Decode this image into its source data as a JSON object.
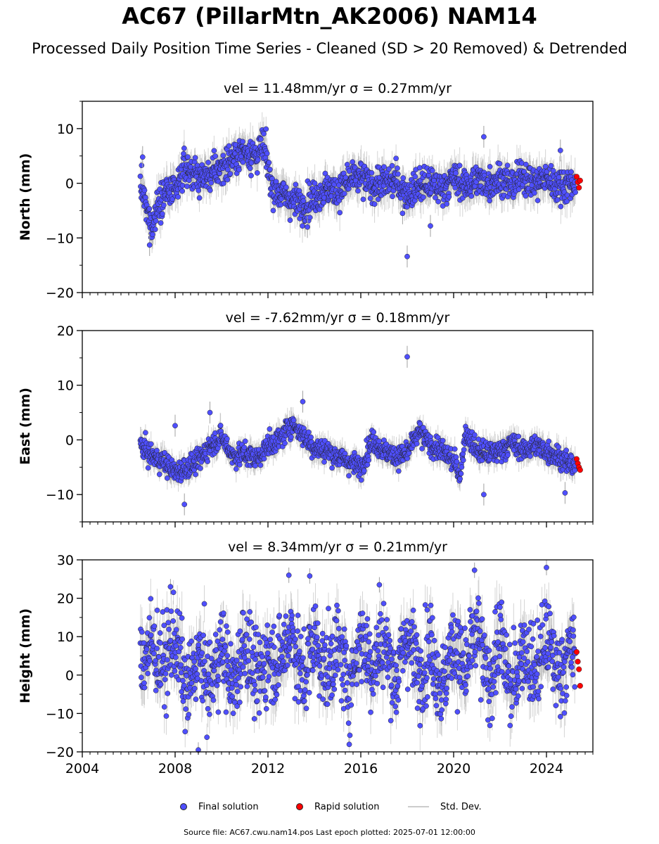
{
  "title": "AC67 (PillarMtn_AK2006) NAM14",
  "subtitle": "Processed Daily Position Time Series - Cleaned (SD > 20 Removed) & Detrended",
  "legend": {
    "final": "Final solution",
    "rapid": "Rapid solution",
    "std": "Std. Dev."
  },
  "source_note": "Source file: AC67.cwu.nam14.pos  Last epoch plotted: 2025-07-01 12:00:00",
  "colors": {
    "final": "#4f4fff",
    "rapid": "#ff0000",
    "std": "#a0a0a0"
  },
  "chart_data": [
    {
      "type": "scatter",
      "title": "vel = 11.48mm/yr   σ = 0.27mm/yr",
      "ylabel": "North (mm)",
      "xlim": [
        2004,
        2026
      ],
      "ylim": [
        -20,
        15
      ],
      "yticks": [
        -20,
        -10,
        0,
        10
      ],
      "xticks": [
        2004,
        2008,
        2012,
        2016,
        2020,
        2024
      ],
      "show_xtick_labels": false,
      "series": [
        {
          "x": [
            2006.5,
            2006.8,
            2007.0,
            2007.3,
            2007.6,
            2008.0,
            2008.4,
            2008.7,
            2009.0,
            2009.5,
            2010.0,
            2010.5,
            2011.0,
            2011.5,
            2011.8,
            2012.2,
            2012.6,
            2013.0,
            2013.5,
            2014.0,
            2014.5,
            2015.0,
            2015.5,
            2016.0,
            2016.5,
            2017.0,
            2017.5,
            2018.0,
            2018.5,
            2019.0,
            2019.5,
            2020.0,
            2020.5,
            2021.0,
            2021.5,
            2022.0,
            2022.5,
            2023.0,
            2023.5,
            2024.0,
            2024.5,
            2025.0
          ],
          "y": [
            0.0,
            -5.5,
            -8.0,
            -3.0,
            -1.5,
            -2.0,
            3.0,
            2.0,
            1.0,
            1.5,
            3.0,
            4.5,
            6.0,
            5.0,
            7.0,
            -1.0,
            -2.0,
            -3.0,
            -4.0,
            -2.5,
            -1.0,
            -1.5,
            0.5,
            1.0,
            -0.5,
            0.0,
            0.5,
            -2.0,
            -0.5,
            0.0,
            -1.0,
            1.0,
            -0.5,
            0.5,
            0.0,
            1.0,
            -0.5,
            1.5,
            0.0,
            1.0,
            -0.5,
            0.0
          ]
        },
        {
          "name": "outliers",
          "x": [
            2006.6,
            2006.9,
            2013.7,
            2017.8,
            2018.0,
            2019.0,
            2021.3,
            2024.6
          ],
          "y": [
            4.8,
            -11.3,
            -8.0,
            -5.5,
            -13.4,
            -7.8,
            8.5,
            6.0
          ]
        },
        {
          "name": "rapid",
          "x": [
            2025.3,
            2025.35,
            2025.4,
            2025.45
          ],
          "y": [
            1.2,
            0.2,
            -0.8,
            0.5
          ]
        }
      ]
    },
    {
      "type": "scatter",
      "title": "vel = -7.62mm/yr   σ = 0.18mm/yr",
      "ylabel": "East (mm)",
      "xlim": [
        2004,
        2026
      ],
      "ylim": [
        -15,
        20
      ],
      "yticks": [
        -10,
        0,
        10,
        20
      ],
      "xticks": [
        2004,
        2008,
        2012,
        2016,
        2020,
        2024
      ],
      "show_xtick_labels": false,
      "series": [
        {
          "x": [
            2006.5,
            2007.0,
            2007.5,
            2008.0,
            2008.5,
            2009.0,
            2009.5,
            2010.0,
            2010.5,
            2011.0,
            2011.5,
            2012.0,
            2012.5,
            2013.0,
            2013.5,
            2014.0,
            2014.5,
            2015.0,
            2015.5,
            2016.0,
            2016.5,
            2017.0,
            2017.5,
            2018.0,
            2018.5,
            2019.0,
            2019.5,
            2020.0,
            2020.3,
            2020.5,
            2021.0,
            2021.5,
            2022.0,
            2022.5,
            2023.0,
            2023.5,
            2024.0,
            2024.5,
            2025.0
          ],
          "y": [
            -1.0,
            -3.0,
            -4.0,
            -6.0,
            -5.0,
            -4.0,
            -1.0,
            0.5,
            -3.0,
            -2.5,
            -3.5,
            -1.0,
            0.0,
            3.0,
            1.0,
            -1.5,
            -2.0,
            -3.0,
            -4.0,
            -5.0,
            0.0,
            -2.0,
            -3.0,
            -2.5,
            1.5,
            -1.0,
            -2.0,
            -4.0,
            -6.5,
            1.5,
            -2.0,
            -2.5,
            -2.0,
            -0.5,
            -2.0,
            -1.0,
            -2.0,
            -3.0,
            -4.5
          ]
        },
        {
          "name": "outliers",
          "x": [
            2008.0,
            2008.4,
            2013.5,
            2018.0,
            2009.5,
            2021.3,
            2024.8
          ],
          "y": [
            2.6,
            -11.8,
            7.0,
            15.2,
            5.0,
            -10.0,
            -9.7
          ]
        },
        {
          "name": "rapid",
          "x": [
            2025.3,
            2025.35,
            2025.4,
            2025.45
          ],
          "y": [
            -3.5,
            -4.3,
            -5.0,
            -5.5
          ]
        }
      ]
    },
    {
      "type": "scatter",
      "title": "vel = 8.34mm/yr   σ = 0.21mm/yr",
      "ylabel": "Height (mm)",
      "xlim": [
        2004,
        2026
      ],
      "ylim": [
        -20,
        30
      ],
      "yticks": [
        -20,
        -10,
        0,
        10,
        20,
        30
      ],
      "xticks": [
        2004,
        2008,
        2012,
        2016,
        2020,
        2024
      ],
      "show_xtick_labels": true,
      "series": [
        {
          "x": [
            2006.5,
            2007.0,
            2007.5,
            2008.0,
            2008.5,
            2009.0,
            2009.5,
            2010.0,
            2010.5,
            2011.0,
            2011.5,
            2012.0,
            2012.5,
            2013.0,
            2013.5,
            2014.0,
            2014.5,
            2015.0,
            2015.5,
            2016.0,
            2016.5,
            2017.0,
            2017.5,
            2018.0,
            2018.5,
            2019.0,
            2019.5,
            2020.0,
            2020.5,
            2021.0,
            2021.5,
            2022.0,
            2022.5,
            2023.0,
            2023.5,
            2024.0,
            2024.5,
            2025.0
          ],
          "y": [
            3.0,
            8.0,
            2.0,
            10.0,
            -5.0,
            5.0,
            -3.0,
            8.0,
            -4.0,
            10.0,
            -2.0,
            5.0,
            3.0,
            12.0,
            -2.0,
            10.0,
            0.0,
            8.0,
            -3.0,
            10.0,
            2.0,
            9.0,
            -2.0,
            11.0,
            0.0,
            8.0,
            -4.0,
            9.0,
            0.0,
            12.0,
            -3.0,
            10.0,
            -5.0,
            8.0,
            0.0,
            10.0,
            0.0,
            6.0
          ]
        },
        {
          "name": "outliers",
          "x": [
            2007.8,
            2009.0,
            2012.9,
            2013.8,
            2020.9,
            2024.0,
            2016.8
          ],
          "y": [
            23.0,
            -19.5,
            26.0,
            25.8,
            27.3,
            28.0,
            23.5
          ]
        },
        {
          "name": "rapid",
          "x": [
            2025.3,
            2025.35,
            2025.4,
            2025.45
          ],
          "y": [
            6.0,
            3.5,
            1.5,
            -2.8
          ]
        }
      ]
    }
  ]
}
